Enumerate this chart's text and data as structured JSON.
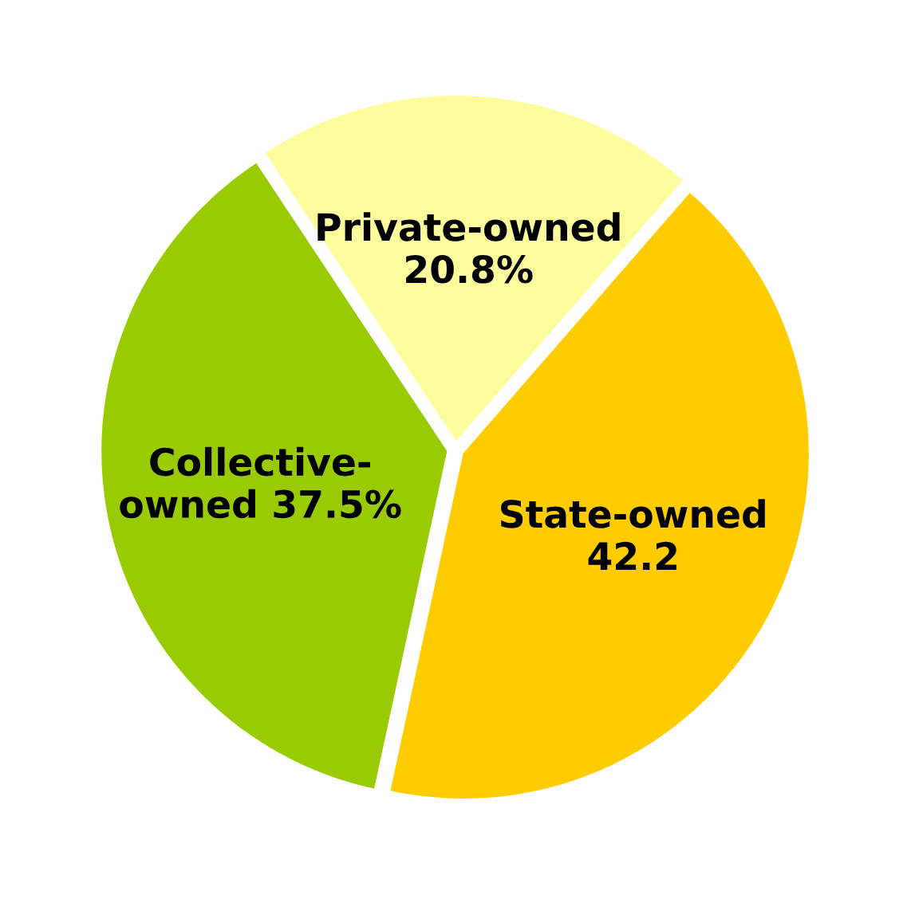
{
  "chart_data": {
    "type": "pie",
    "categories": [
      "Private-owned",
      "Collective-owned",
      "State-owned"
    ],
    "values": [
      20.8,
      37.5,
      42.2
    ],
    "value_labels": [
      "20.8%",
      "37.5%",
      "42.2"
    ],
    "colors": [
      "#fcfc9c",
      "#99cc00",
      "#ffcc00"
    ]
  }
}
